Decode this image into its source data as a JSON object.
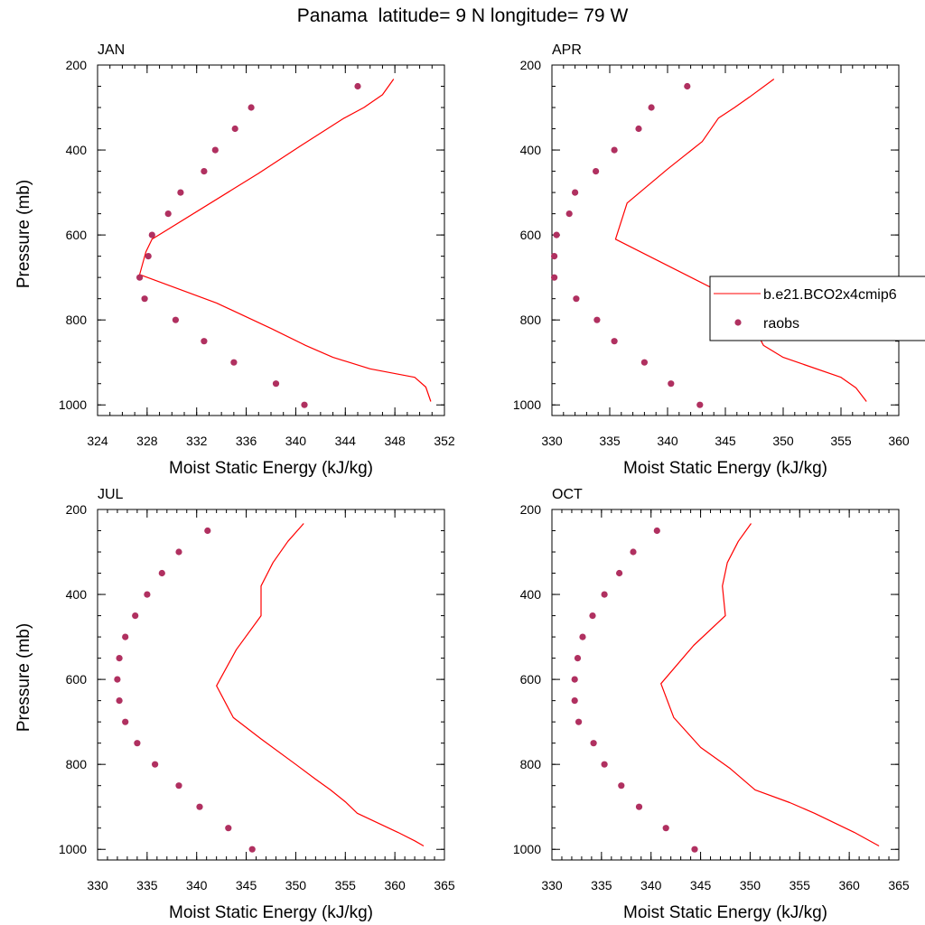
{
  "title": "Panama  latitude= 9 N longitude= 79 W",
  "legend": {
    "model_label": "b.e21.BCO2x4cmip6",
    "obs_label": "raobs",
    "model_color": "#ff0000",
    "obs_color": "#b03060"
  },
  "chart_data": [
    {
      "type": "line",
      "panel_title": "JAN",
      "xlabel": "Moist Static Energy (kJ/kg)",
      "ylabel": "Pressure (mb)",
      "xlim": [
        324,
        352
      ],
      "xticks": [
        324,
        328,
        332,
        336,
        340,
        344,
        348,
        352
      ],
      "xminor": 1,
      "ylim": [
        200,
        1025
      ],
      "yticks": [
        200,
        400,
        600,
        800,
        1000
      ],
      "y_reversed": true,
      "series": [
        {
          "name": "b.e21.BCO2x4cmip6",
          "kind": "line",
          "x": [
            347.9,
            347.0,
            345.5,
            343.9,
            340.4,
            337.0,
            328.4,
            327.9,
            327.4,
            333.6,
            338.0,
            340.8,
            343.0,
            346.0,
            349.6,
            350.5,
            350.9
          ],
          "y": [
            233,
            270,
            300,
            325,
            390,
            455,
            610,
            640,
            693,
            760,
            820,
            860,
            888,
            915,
            935,
            958,
            992
          ]
        },
        {
          "name": "raobs",
          "kind": "scatter",
          "x": [
            345.0,
            336.4,
            335.1,
            333.5,
            332.6,
            330.7,
            329.7,
            328.4,
            328.1,
            327.4,
            327.8,
            330.3,
            332.6,
            335.0,
            338.4,
            340.7
          ],
          "y": [
            250,
            300,
            350,
            400,
            450,
            500,
            550,
            600,
            650,
            700,
            750,
            800,
            850,
            900,
            950,
            1000
          ]
        }
      ]
    },
    {
      "type": "line",
      "panel_title": "APR",
      "xlabel": "Moist Static Energy (kJ/kg)",
      "ylabel": "",
      "xlim": [
        330,
        360
      ],
      "xticks": [
        330,
        335,
        340,
        345,
        350,
        355,
        360
      ],
      "xminor": 1,
      "ylim": [
        200,
        1025
      ],
      "yticks": [
        200,
        400,
        600,
        800,
        1000
      ],
      "y_reversed": true,
      "series": [
        {
          "name": "b.e21.BCO2x4cmip6",
          "kind": "line",
          "x": [
            349.2,
            347.1,
            345.8,
            344.4,
            343.0,
            340.0,
            336.5,
            335.5,
            346.4,
            348.3,
            350.0,
            355.0,
            356.3,
            357.2
          ],
          "y": [
            233,
            275,
            300,
            325,
            380,
            445,
            525,
            610,
            760,
            860,
            888,
            935,
            960,
            992
          ]
        },
        {
          "name": "raobs",
          "kind": "scatter",
          "x": [
            341.7,
            338.6,
            337.5,
            335.4,
            333.8,
            332.0,
            331.5,
            330.4,
            330.2,
            330.2,
            332.1,
            333.9,
            335.4,
            338.0,
            340.3,
            342.8
          ],
          "y": [
            250,
            300,
            350,
            400,
            450,
            500,
            550,
            600,
            650,
            700,
            750,
            800,
            850,
            900,
            950,
            1000
          ]
        }
      ]
    },
    {
      "type": "line",
      "panel_title": "JUL",
      "xlabel": "Moist Static Energy (kJ/kg)",
      "ylabel": "Pressure (mb)",
      "xlim": [
        330,
        365
      ],
      "xticks": [
        330,
        335,
        340,
        345,
        350,
        355,
        360,
        365
      ],
      "xminor": 1,
      "ylim": [
        200,
        1025
      ],
      "yticks": [
        200,
        400,
        600,
        800,
        1000
      ],
      "y_reversed": true,
      "series": [
        {
          "name": "b.e21.BCO2x4cmip6",
          "kind": "line",
          "x": [
            350.8,
            349.2,
            347.7,
            346.5,
            346.5,
            344.0,
            342.0,
            343.7,
            346.5,
            350.0,
            352.0,
            353.5,
            355.0,
            356.2,
            360.3,
            362.0,
            362.9
          ],
          "y": [
            233,
            275,
            325,
            380,
            450,
            530,
            615,
            690,
            740,
            800,
            835,
            860,
            888,
            915,
            960,
            980,
            992
          ]
        },
        {
          "name": "raobs",
          "kind": "scatter",
          "x": [
            341.1,
            338.2,
            336.5,
            335.0,
            333.8,
            332.8,
            332.2,
            332.0,
            332.2,
            332.8,
            334.0,
            335.8,
            338.2,
            340.3,
            343.2,
            345.6
          ],
          "y": [
            250,
            300,
            350,
            400,
            450,
            500,
            550,
            600,
            650,
            700,
            750,
            800,
            850,
            900,
            950,
            1000
          ]
        }
      ]
    },
    {
      "type": "line",
      "panel_title": "OCT",
      "xlabel": "Moist Static Energy (kJ/kg)",
      "ylabel": "",
      "xlim": [
        330,
        365
      ],
      "xticks": [
        330,
        335,
        340,
        345,
        350,
        355,
        360,
        365
      ],
      "xminor": 1,
      "ylim": [
        200,
        1025
      ],
      "yticks": [
        200,
        400,
        600,
        800,
        1000
      ],
      "y_reversed": true,
      "series": [
        {
          "name": "b.e21.BCO2x4cmip6",
          "kind": "line",
          "x": [
            350.1,
            348.8,
            347.7,
            347.2,
            347.5,
            344.3,
            341.0,
            342.3,
            345.0,
            348.0,
            350.5,
            354.0,
            356.5,
            360.5,
            363.0
          ],
          "y": [
            233,
            275,
            325,
            380,
            450,
            520,
            610,
            690,
            760,
            810,
            860,
            890,
            915,
            960,
            992
          ]
        },
        {
          "name": "raobs",
          "kind": "scatter",
          "x": [
            340.6,
            338.2,
            336.8,
            335.3,
            334.1,
            333.1,
            332.6,
            332.3,
            332.3,
            332.7,
            334.2,
            335.3,
            337.0,
            338.8,
            341.5,
            344.4
          ],
          "y": [
            250,
            300,
            350,
            400,
            450,
            500,
            550,
            600,
            650,
            700,
            750,
            800,
            850,
            900,
            950,
            1000
          ]
        }
      ]
    }
  ]
}
